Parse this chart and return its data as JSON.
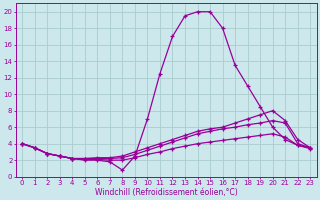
{
  "background_color": "#cce8ec",
  "grid_color": "#aacccc",
  "line_color": "#990099",
  "xlim": [
    -0.5,
    23.5
  ],
  "ylim": [
    0,
    21
  ],
  "yticks": [
    0,
    2,
    4,
    6,
    8,
    10,
    12,
    14,
    16,
    18,
    20
  ],
  "xticks": [
    0,
    1,
    2,
    3,
    4,
    5,
    6,
    7,
    8,
    9,
    10,
    11,
    12,
    13,
    14,
    15,
    16,
    17,
    18,
    19,
    20,
    21,
    22,
    23
  ],
  "xlabel": "Windchill (Refroidissement éolien,°C)",
  "series1_x": [
    0,
    1,
    2,
    3,
    4,
    5,
    6,
    7,
    8,
    9,
    10,
    11,
    12,
    13,
    14,
    15,
    16,
    17,
    18,
    19,
    20,
    21,
    22,
    23
  ],
  "series1_y": [
    4.0,
    3.5,
    2.8,
    2.5,
    2.2,
    2.0,
    2.0,
    1.8,
    0.8,
    2.5,
    7.0,
    12.5,
    17.0,
    19.5,
    20.0,
    20.0,
    18.0,
    13.5,
    11.0,
    8.5,
    6.0,
    4.5,
    3.8,
    3.5
  ],
  "series2_x": [
    0,
    1,
    2,
    3,
    4,
    5,
    6,
    7,
    8,
    9,
    10,
    11,
    12,
    13,
    14,
    15,
    16,
    17,
    18,
    19,
    20,
    21,
    22,
    23
  ],
  "series2_y": [
    4.0,
    3.5,
    2.8,
    2.5,
    2.2,
    2.2,
    2.3,
    2.3,
    2.5,
    3.0,
    3.5,
    4.0,
    4.5,
    5.0,
    5.5,
    5.8,
    6.0,
    6.5,
    7.0,
    7.5,
    8.0,
    6.8,
    4.5,
    3.5
  ],
  "series3_x": [
    0,
    1,
    2,
    3,
    4,
    5,
    6,
    7,
    8,
    9,
    10,
    11,
    12,
    13,
    14,
    15,
    16,
    17,
    18,
    19,
    20,
    21,
    22,
    23
  ],
  "series3_y": [
    4.0,
    3.5,
    2.8,
    2.5,
    2.2,
    2.2,
    2.2,
    2.2,
    2.3,
    2.7,
    3.2,
    3.7,
    4.2,
    4.7,
    5.2,
    5.5,
    5.8,
    6.0,
    6.3,
    6.5,
    6.8,
    6.5,
    4.0,
    3.5
  ],
  "series4_x": [
    0,
    1,
    2,
    3,
    4,
    5,
    6,
    7,
    8,
    9,
    10,
    11,
    12,
    13,
    14,
    15,
    16,
    17,
    18,
    19,
    20,
    21,
    22,
    23
  ],
  "series4_y": [
    4.0,
    3.5,
    2.8,
    2.5,
    2.2,
    2.1,
    2.1,
    2.0,
    2.0,
    2.3,
    2.7,
    3.0,
    3.4,
    3.7,
    4.0,
    4.2,
    4.4,
    4.6,
    4.8,
    5.0,
    5.2,
    4.8,
    3.8,
    3.4
  ],
  "tick_fontsize": 5,
  "xlabel_fontsize": 5.5
}
